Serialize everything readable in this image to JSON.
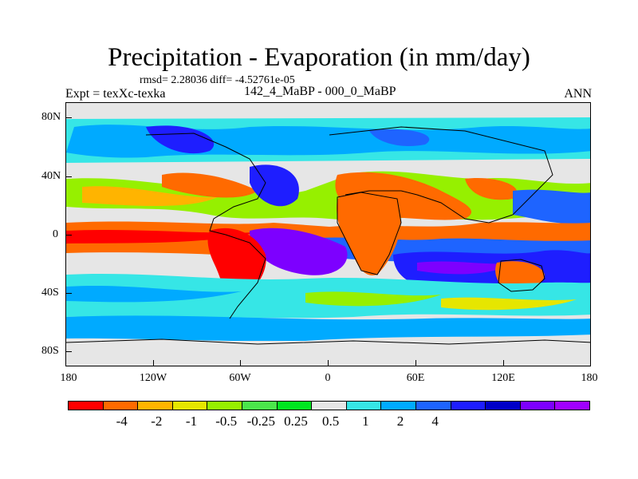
{
  "title": "Precipitation - Evaporation (in mm/day)",
  "stats": "rmsd= 2.28036 diff= -4.52761e-05",
  "experiment": "Expt = texXc-texka",
  "period": "142_4_MaBP - 000_0_MaBP",
  "season": "ANN",
  "y_axis_labels": [
    "80N",
    "40N",
    "0",
    "40S",
    "80S"
  ],
  "x_axis_labels": [
    "180",
    "120W",
    "60W",
    "0",
    "60E",
    "120E",
    "180"
  ],
  "colorbar": {
    "colors": [
      "#ff0000",
      "#ff6a00",
      "#ffb400",
      "#e6e600",
      "#96f000",
      "#4be64b",
      "#00e620",
      "#e6e6e6",
      "#36e6e6",
      "#00aaff",
      "#1e64ff",
      "#1e1eff",
      "#0000c8",
      "#7d00ff",
      "#a000ff"
    ],
    "labels": [
      "-4",
      "-2",
      "-1",
      "-0.5",
      "-0.25",
      "0.25",
      "0.5",
      "1",
      "2",
      "4"
    ]
  }
}
